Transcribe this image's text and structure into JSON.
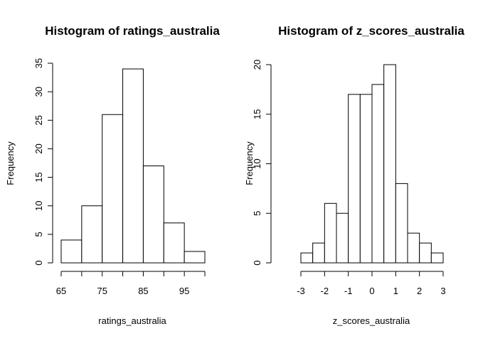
{
  "chart_data": [
    {
      "type": "bar",
      "title": "Histogram of ratings_australia",
      "xlabel": "ratings_australia",
      "ylabel": "Frequency",
      "bin_edges": [
        65,
        70,
        75,
        80,
        85,
        90,
        95,
        100
      ],
      "values": [
        4,
        10,
        26,
        34,
        17,
        7,
        2
      ],
      "xlim": [
        65,
        100
      ],
      "ylim": [
        0,
        35
      ],
      "x_ticks": [
        65,
        70,
        75,
        80,
        85,
        90,
        95,
        100
      ],
      "x_tick_labels": [
        "65",
        "",
        "75",
        "",
        "85",
        "",
        "95",
        ""
      ],
      "y_ticks": [
        0,
        5,
        10,
        15,
        20,
        25,
        30,
        35
      ],
      "y_tick_labels": [
        "0",
        "5",
        "10",
        "15",
        "20",
        "25",
        "30",
        "35"
      ],
      "grid": false
    },
    {
      "type": "bar",
      "title": "Histogram of z_scores_australia",
      "xlabel": "z_scores_australia",
      "ylabel": "Frequency",
      "bin_edges": [
        -3.0,
        -2.5,
        -2.0,
        -1.5,
        -1.0,
        -0.5,
        0.0,
        0.5,
        1.0,
        1.5,
        2.0,
        2.5,
        3.0
      ],
      "values": [
        1,
        2,
        6,
        5,
        17,
        17,
        18,
        20,
        8,
        3,
        2,
        1
      ],
      "xlim": [
        -3,
        3
      ],
      "ylim": [
        0,
        20
      ],
      "x_ticks": [
        -3,
        -2,
        -1,
        0,
        1,
        2,
        3
      ],
      "x_tick_labels": [
        "-3",
        "-2",
        "-1",
        "0",
        "1",
        "2",
        "3"
      ],
      "y_ticks": [
        0,
        5,
        10,
        15,
        20
      ],
      "y_tick_labels": [
        "0",
        "5",
        "10",
        "15",
        "20"
      ],
      "grid": false
    }
  ]
}
